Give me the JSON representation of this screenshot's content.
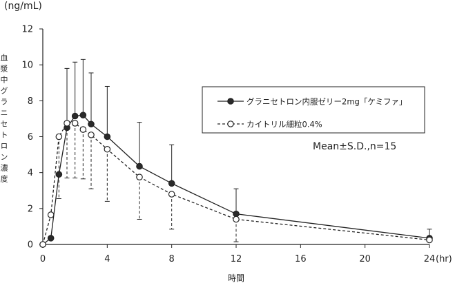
{
  "chart_data": {
    "type": "line",
    "unit_label": "(ng/mL)",
    "ylabel": "血漿中グラニセトロン濃度",
    "xlabel": "時間",
    "x_unit": "(hr)",
    "annotation": "Mean±S.D.,n=15",
    "xlim": [
      0,
      24
    ],
    "ylim": [
      0,
      12
    ],
    "x_ticks": [
      0,
      4,
      8,
      12,
      16,
      20,
      24
    ],
    "y_ticks": [
      0,
      2,
      4,
      6,
      8,
      10,
      12
    ],
    "legend_position": "top-right",
    "grid": false,
    "series": [
      {
        "name": "グラニセトロン内服ゼリー2mg「ケミファ」",
        "marker": "filled-circle",
        "line": "solid",
        "x": [
          0,
          0.5,
          1,
          1.5,
          2,
          2.5,
          3,
          4,
          6,
          8,
          12,
          24
        ],
        "y": [
          0,
          0.35,
          3.9,
          6.5,
          7.15,
          7.2,
          6.7,
          6.0,
          4.35,
          3.4,
          1.7,
          0.35
        ],
        "sd": [
          0,
          0,
          0,
          3.3,
          3.0,
          3.1,
          2.85,
          2.8,
          2.45,
          2.15,
          1.4,
          0.5
        ],
        "sd_direction": "up"
      },
      {
        "name": "カイトリル細粒0.4%",
        "marker": "open-circle",
        "line": "dashed",
        "x": [
          0,
          0.5,
          1,
          1.5,
          2,
          2.5,
          3,
          4,
          6,
          8,
          12,
          24
        ],
        "y": [
          0,
          1.65,
          6.0,
          6.75,
          6.75,
          6.4,
          6.1,
          5.3,
          3.75,
          2.8,
          1.4,
          0.25
        ],
        "sd": [
          0,
          0,
          3.45,
          3.05,
          3.05,
          2.75,
          3.0,
          2.9,
          2.35,
          1.95,
          1.25,
          0.1
        ],
        "sd_direction": "down"
      }
    ]
  },
  "colors": {
    "axis": "#222222",
    "series": "#222222"
  }
}
